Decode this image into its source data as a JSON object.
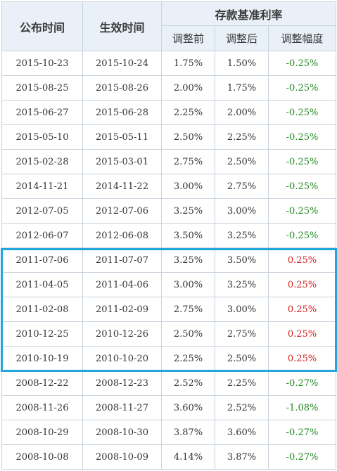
{
  "header": {
    "announce_date": "公布时间",
    "effective_date": "生效时间",
    "group_title": "存款基准利率",
    "before": "调整前",
    "after": "调整后",
    "change": "调整幅度"
  },
  "rows": [
    {
      "announce": "2015-10-23",
      "effective": "2015-10-24",
      "before": "1.75%",
      "after": "1.50%",
      "change": "-0.25%",
      "direction": "down"
    },
    {
      "announce": "2015-08-25",
      "effective": "2015-08-26",
      "before": "2.00%",
      "after": "1.75%",
      "change": "-0.25%",
      "direction": "down"
    },
    {
      "announce": "2015-06-27",
      "effective": "2015-06-28",
      "before": "2.25%",
      "after": "2.00%",
      "change": "-0.25%",
      "direction": "down"
    },
    {
      "announce": "2015-05-10",
      "effective": "2015-05-11",
      "before": "2.50%",
      "after": "2.25%",
      "change": "-0.25%",
      "direction": "down"
    },
    {
      "announce": "2015-02-28",
      "effective": "2015-03-01",
      "before": "2.75%",
      "after": "2.50%",
      "change": "-0.25%",
      "direction": "down"
    },
    {
      "announce": "2014-11-21",
      "effective": "2014-11-22",
      "before": "3.00%",
      "after": "2.75%",
      "change": "-0.25%",
      "direction": "down"
    },
    {
      "announce": "2012-07-05",
      "effective": "2012-07-06",
      "before": "3.25%",
      "after": "3.00%",
      "change": "-0.25%",
      "direction": "down"
    },
    {
      "announce": "2012-06-07",
      "effective": "2012-06-08",
      "before": "3.50%",
      "after": "3.25%",
      "change": "-0.25%",
      "direction": "down"
    },
    {
      "announce": "2011-07-06",
      "effective": "2011-07-07",
      "before": "3.25%",
      "after": "3.50%",
      "change": "0.25%",
      "direction": "up"
    },
    {
      "announce": "2011-04-05",
      "effective": "2011-04-06",
      "before": "3.00%",
      "after": "3.25%",
      "change": "0.25%",
      "direction": "up"
    },
    {
      "announce": "2011-02-08",
      "effective": "2011-02-09",
      "before": "2.75%",
      "after": "3.00%",
      "change": "0.25%",
      "direction": "up"
    },
    {
      "announce": "2010-12-25",
      "effective": "2010-12-26",
      "before": "2.50%",
      "after": "2.75%",
      "change": "0.25%",
      "direction": "up"
    },
    {
      "announce": "2010-10-19",
      "effective": "2010-10-20",
      "before": "2.25%",
      "after": "2.50%",
      "change": "0.25%",
      "direction": "up"
    },
    {
      "announce": "2008-12-22",
      "effective": "2008-12-23",
      "before": "2.52%",
      "after": "2.25%",
      "change": "-0.27%",
      "direction": "down"
    },
    {
      "announce": "2008-11-26",
      "effective": "2008-11-27",
      "before": "3.60%",
      "after": "2.52%",
      "change": "-1.08%",
      "direction": "down"
    },
    {
      "announce": "2008-10-29",
      "effective": "2008-10-30",
      "before": "3.87%",
      "after": "3.60%",
      "change": "-0.27%",
      "direction": "down"
    },
    {
      "announce": "2008-10-08",
      "effective": "2008-10-09",
      "before": "4.14%",
      "after": "3.87%",
      "change": "-0.27%",
      "direction": "down"
    }
  ],
  "colors": {
    "header_bg": "#e9f0f8",
    "grid_line": "#c9d3dd",
    "negative_change": "#208a20",
    "positive_change": "#d42020",
    "highlight_border": "#22a6dc"
  }
}
